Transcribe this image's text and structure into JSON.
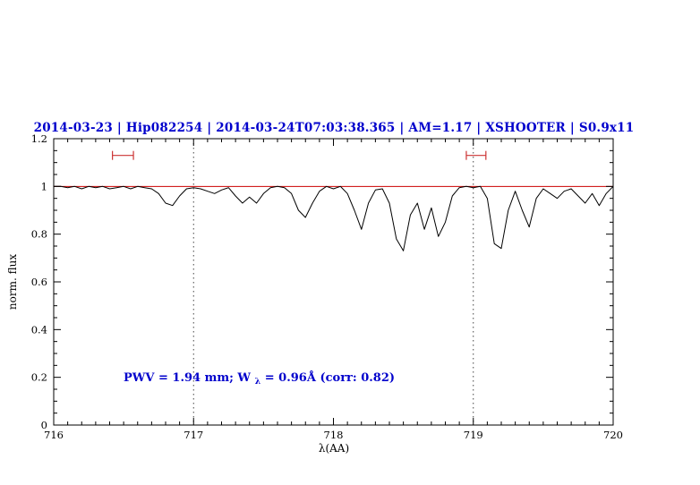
{
  "title": "2014-03-23 | Hip082254 | 2014-03-24T07:03:38.365 | AM=1.17 | XSHOOTER | S0.9x11",
  "annotation": {
    "part1": "PWV = 1.94 mm; W",
    "subscript": "λ",
    "part2": " = 0.96Å (corr: 0.82)"
  },
  "colors": {
    "title": "#0000cc",
    "annotation": "#0000cc",
    "spectrum": "#000000",
    "reference_line": "#cc0000",
    "marker": "#cc3333",
    "guide": "#444444",
    "axis": "#000000"
  },
  "chart_data": {
    "type": "line",
    "title": "2014-03-23 | Hip082254 | 2014-03-24T07:03:38.365 | AM=1.17 | XSHOOTER | S0.9x11",
    "xlabel": "λ(AA)",
    "ylabel": "norm. flux",
    "xlim": [
      716,
      720
    ],
    "ylim": [
      0,
      1.2
    ],
    "grid": false,
    "x_ticks": [
      {
        "v": 716,
        "label": "716"
      },
      {
        "v": 717,
        "label": "717"
      },
      {
        "v": 718,
        "label": "718"
      },
      {
        "v": 719,
        "label": "719"
      },
      {
        "v": 720,
        "label": "720"
      }
    ],
    "y_ticks": [
      {
        "v": 0,
        "label": "0"
      },
      {
        "v": 0.2,
        "label": "0.2"
      },
      {
        "v": 0.4,
        "label": "0.4"
      },
      {
        "v": 0.6,
        "label": "0.6"
      },
      {
        "v": 0.8,
        "label": "0.8"
      },
      {
        "v": 1,
        "label": "1"
      },
      {
        "v": 1.2,
        "label": "1.2"
      }
    ],
    "guides_x": [
      717,
      719
    ],
    "reference_y": 1.0,
    "markers": [
      {
        "x1": 716.42,
        "x2": 716.57,
        "y": 1.13
      },
      {
        "x1": 718.95,
        "x2": 719.09,
        "y": 1.13
      }
    ],
    "annotation_xy": [
      716.5,
      0.2
    ],
    "series": [
      {
        "name": "spectrum",
        "points": [
          [
            716.0,
            1.0
          ],
          [
            716.05,
            1.0
          ],
          [
            716.1,
            0.995
          ],
          [
            716.15,
            1.0
          ],
          [
            716.2,
            0.99
          ],
          [
            716.25,
            1.0
          ],
          [
            716.3,
            0.995
          ],
          [
            716.35,
            1.0
          ],
          [
            716.4,
            0.99
          ],
          [
            716.45,
            0.995
          ],
          [
            716.5,
            1.0
          ],
          [
            716.55,
            0.99
          ],
          [
            716.6,
            1.0
          ],
          [
            716.65,
            0.995
          ],
          [
            716.7,
            0.99
          ],
          [
            716.75,
            0.97
          ],
          [
            716.8,
            0.93
          ],
          [
            716.85,
            0.92
          ],
          [
            716.9,
            0.96
          ],
          [
            716.95,
            0.99
          ],
          [
            717.0,
            0.995
          ],
          [
            717.05,
            0.99
          ],
          [
            717.1,
            0.98
          ],
          [
            717.15,
            0.97
          ],
          [
            717.2,
            0.985
          ],
          [
            717.25,
            0.995
          ],
          [
            717.3,
            0.96
          ],
          [
            717.35,
            0.93
          ],
          [
            717.4,
            0.955
          ],
          [
            717.45,
            0.93
          ],
          [
            717.5,
            0.97
          ],
          [
            717.55,
            0.995
          ],
          [
            717.6,
            1.0
          ],
          [
            717.65,
            0.995
          ],
          [
            717.7,
            0.97
          ],
          [
            717.75,
            0.9
          ],
          [
            717.8,
            0.87
          ],
          [
            717.85,
            0.93
          ],
          [
            717.9,
            0.98
          ],
          [
            717.95,
            1.0
          ],
          [
            718.0,
            0.99
          ],
          [
            718.05,
            1.0
          ],
          [
            718.1,
            0.97
          ],
          [
            718.15,
            0.9
          ],
          [
            718.2,
            0.82
          ],
          [
            718.25,
            0.93
          ],
          [
            718.3,
            0.985
          ],
          [
            718.35,
            0.99
          ],
          [
            718.4,
            0.93
          ],
          [
            718.45,
            0.78
          ],
          [
            718.5,
            0.73
          ],
          [
            718.55,
            0.88
          ],
          [
            718.6,
            0.93
          ],
          [
            718.65,
            0.82
          ],
          [
            718.7,
            0.91
          ],
          [
            718.75,
            0.79
          ],
          [
            718.8,
            0.85
          ],
          [
            718.85,
            0.96
          ],
          [
            718.9,
            0.995
          ],
          [
            718.95,
            1.0
          ],
          [
            719.0,
            0.995
          ],
          [
            719.05,
            1.0
          ],
          [
            719.1,
            0.95
          ],
          [
            719.15,
            0.76
          ],
          [
            719.2,
            0.74
          ],
          [
            719.25,
            0.9
          ],
          [
            719.3,
            0.98
          ],
          [
            719.35,
            0.9
          ],
          [
            719.4,
            0.83
          ],
          [
            719.45,
            0.95
          ],
          [
            719.5,
            0.99
          ],
          [
            719.55,
            0.97
          ],
          [
            719.6,
            0.95
          ],
          [
            719.65,
            0.98
          ],
          [
            719.7,
            0.99
          ],
          [
            719.75,
            0.96
          ],
          [
            719.8,
            0.93
          ],
          [
            719.85,
            0.97
          ],
          [
            719.9,
            0.92
          ],
          [
            719.95,
            0.97
          ],
          [
            720.0,
            1.0
          ]
        ]
      }
    ]
  }
}
